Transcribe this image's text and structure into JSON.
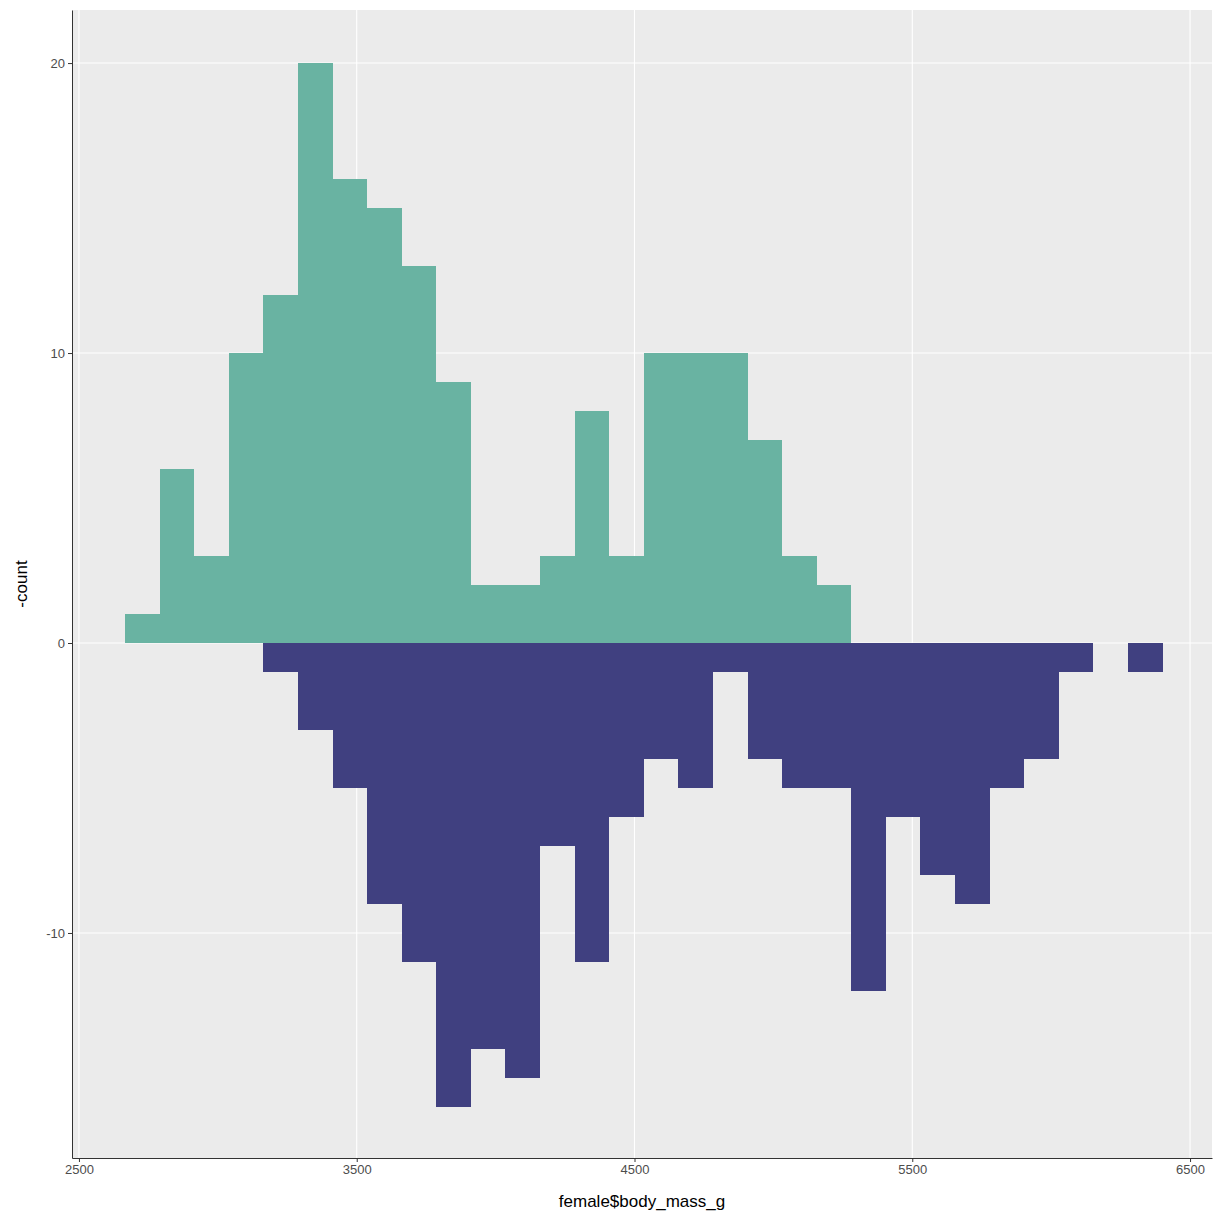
{
  "chart_data": {
    "type": "histogram",
    "x_label": "female$body_mass_g",
    "y_label": "-count",
    "bins": [
      2666,
      2790.5,
      2915,
      3039.5,
      3164,
      3288.5,
      3413,
      3537.5,
      3662,
      3786.5,
      3911,
      4035.5,
      4160,
      4284.5,
      4409,
      4533.5,
      4658,
      4782.5,
      4907,
      5031.5,
      5156,
      5280.5,
      5405,
      5529.5,
      5654,
      5778.5,
      5903,
      6027.5,
      6152,
      6276.5,
      6401
    ],
    "series": [
      {
        "color": "#69b3a2",
        "values": [
          1,
          6,
          3,
          10,
          12,
          20,
          16,
          15,
          13,
          9,
          2,
          2,
          3,
          8,
          3,
          10,
          10,
          10,
          7,
          3,
          2,
          0,
          0,
          0,
          0,
          0,
          0,
          0,
          0,
          0
        ]
      },
      {
        "color": "#404080",
        "values": [
          0,
          0,
          0,
          0,
          -1,
          -3,
          -5,
          -9,
          -11,
          -16,
          -14,
          -15,
          -7,
          -11,
          -6,
          -4,
          -5,
          -1,
          -4,
          -5,
          -5,
          -12,
          -6,
          -8,
          -9,
          -5,
          -4,
          -1,
          0,
          -1
        ]
      }
    ],
    "xlim": [
      2475,
      6579
    ],
    "ylim": [
      -17.76,
      21.83
    ],
    "xticks": [
      2500,
      3500,
      4500,
      5500,
      6500
    ],
    "yticks": [
      -10,
      0,
      10,
      20
    ],
    "grid": true
  }
}
